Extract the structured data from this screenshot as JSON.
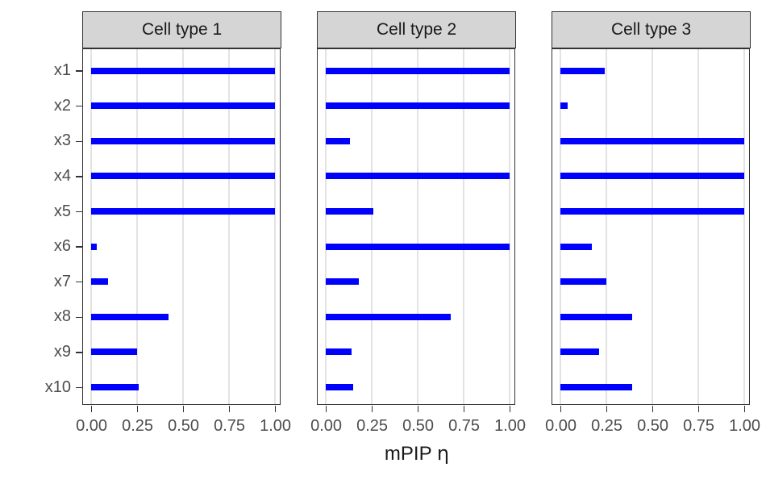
{
  "figure": {
    "axis_title_prefix": "mPIP ",
    "axis_title_symbol": "η"
  },
  "axis": {
    "x_tick_labels": [
      "0.00",
      "0.25",
      "0.50",
      "0.75",
      "1.00"
    ]
  },
  "chart_data": {
    "type": "bar",
    "orientation": "horizontal",
    "title": "",
    "xlabel": "mPIP η",
    "ylabel": "",
    "xlim": [
      0,
      1.0
    ],
    "x_breaks": [
      0,
      0.25,
      0.5,
      0.75,
      1.0
    ],
    "grid": "vertical-major-only",
    "legend": "none",
    "bar_color": "#0000FF",
    "categories": [
      "x1",
      "x2",
      "x3",
      "x4",
      "x5",
      "x6",
      "x7",
      "x8",
      "x9",
      "x10"
    ],
    "facets": [
      {
        "label": "Cell type 1",
        "values": [
          1.0,
          1.0,
          1.0,
          1.0,
          1.0,
          0.03,
          0.09,
          0.42,
          0.25,
          0.26
        ]
      },
      {
        "label": "Cell type 2",
        "values": [
          1.0,
          1.0,
          0.13,
          1.0,
          0.26,
          1.0,
          0.18,
          0.68,
          0.14,
          0.15
        ]
      },
      {
        "label": "Cell type 3",
        "values": [
          0.24,
          0.04,
          1.0,
          1.0,
          1.0,
          0.17,
          0.25,
          0.39,
          0.21,
          0.39
        ]
      }
    ]
  },
  "colors": {
    "bar": "#0000FF",
    "strip_fill": "#D5D5D5",
    "strip_border": "#333333",
    "panel_border": "#333333",
    "gridline": "#E3E3E3",
    "axis_text": "#4D4D4D",
    "title_text": "#1A1A1A",
    "background": "#FFFFFF"
  }
}
